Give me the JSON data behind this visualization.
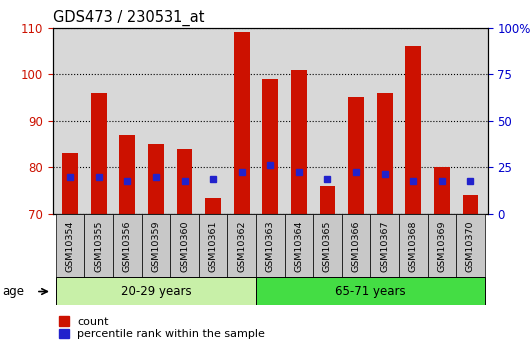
{
  "title": "GDS473 / 230531_at",
  "samples": [
    "GSM10354",
    "GSM10355",
    "GSM10356",
    "GSM10359",
    "GSM10360",
    "GSM10361",
    "GSM10362",
    "GSM10363",
    "GSM10364",
    "GSM10365",
    "GSM10366",
    "GSM10367",
    "GSM10368",
    "GSM10369",
    "GSM10370"
  ],
  "counts": [
    83,
    96,
    87,
    85,
    84,
    73.5,
    109,
    99,
    101,
    76,
    95,
    96,
    106,
    80,
    74
  ],
  "percentile_vals": [
    78,
    78,
    77,
    78,
    77,
    77.5,
    79,
    80.5,
    79,
    77.5,
    79,
    78.5,
    77,
    77,
    77
  ],
  "bar_color": "#cc1100",
  "blue_color": "#2222cc",
  "ymin": 70,
  "ymax": 110,
  "yticks_left": [
    70,
    80,
    90,
    100,
    110
  ],
  "yticks_right": [
    0,
    25,
    50,
    75,
    100
  ],
  "group1_label": "20-29 years",
  "group2_label": "65-71 years",
  "group1_count": 7,
  "group2_count": 8,
  "legend_count": "count",
  "legend_percentile": "percentile rank within the sample",
  "age_label": "age",
  "bg_plot": "#d8d8d8",
  "bg_tickbox": "#c8c8c8",
  "bg_group1": "#c8f0a8",
  "bg_group2": "#44dd44",
  "left_axis_color": "#cc1100",
  "right_axis_color": "#0000cc",
  "grid_color": "#000000"
}
